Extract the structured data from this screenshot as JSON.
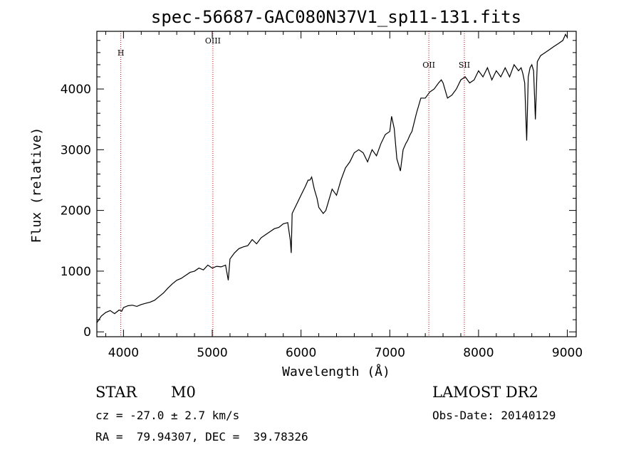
{
  "chart_data": {
    "type": "line",
    "title": "spec-56687-GAC080N37V1_sp11-131.fits",
    "xlabel": "Wavelength (Å)",
    "ylabel": "Flux (relative)",
    "xlim": [
      3700,
      9100
    ],
    "ylim": [
      -80,
      4950
    ],
    "xticks": [
      4000,
      5000,
      6000,
      7000,
      8000,
      9000
    ],
    "yticks": [
      0,
      1000,
      2000,
      3000,
      4000
    ],
    "grid": false,
    "series": [
      {
        "x": [
          3700,
          3750,
          3800,
          3850,
          3900,
          3950,
          3980,
          4000,
          4050,
          4100,
          4150,
          4200,
          4250,
          4300,
          4350,
          4400,
          4450,
          4500,
          4550,
          4600,
          4650,
          4700,
          4750,
          4800,
          4850,
          4900,
          4950,
          5000,
          5050,
          5100,
          5150,
          5180,
          5200,
          5250,
          5300,
          5350,
          5400,
          5450,
          5500,
          5550,
          5600,
          5650,
          5700,
          5750,
          5800,
          5850,
          5880,
          5890,
          5900,
          5950,
          6000,
          6050,
          6080,
          6100,
          6120,
          6150,
          6180,
          6200,
          6250,
          6280,
          6300,
          6350,
          6400,
          6450,
          6500,
          6550,
          6600,
          6650,
          6700,
          6750,
          6800,
          6850,
          6900,
          6950,
          7000,
          7020,
          7050,
          7080,
          7100,
          7120,
          7150,
          7180,
          7200,
          7230,
          7250,
          7300,
          7350,
          7400,
          7450,
          7500,
          7550,
          7580,
          7600,
          7650,
          7700,
          7750,
          7800,
          7850,
          7900,
          7950,
          8000,
          8050,
          8100,
          8150,
          8200,
          8250,
          8300,
          8350,
          8400,
          8450,
          8480,
          8500,
          8520,
          8542,
          8560,
          8580,
          8600,
          8620,
          8640,
          8662,
          8680,
          8700,
          8750,
          8800,
          8850,
          8900,
          8950,
          8980,
          9000
        ],
        "y": [
          150,
          260,
          320,
          350,
          300,
          360,
          340,
          400,
          430,
          440,
          420,
          450,
          470,
          490,
          520,
          580,
          640,
          720,
          790,
          850,
          880,
          930,
          980,
          1000,
          1050,
          1020,
          1100,
          1050,
          1080,
          1070,
          1100,
          850,
          1200,
          1300,
          1370,
          1400,
          1420,
          1520,
          1450,
          1550,
          1600,
          1650,
          1700,
          1720,
          1780,
          1800,
          1500,
          1300,
          1950,
          2100,
          2250,
          2400,
          2500,
          2500,
          2550,
          2350,
          2200,
          2050,
          1950,
          2000,
          2100,
          2350,
          2250,
          2500,
          2700,
          2800,
          2950,
          3000,
          2950,
          2800,
          3000,
          2900,
          3100,
          3250,
          3300,
          3550,
          3350,
          2850,
          2750,
          2650,
          3000,
          3100,
          3150,
          3250,
          3300,
          3600,
          3850,
          3850,
          3950,
          4000,
          4100,
          4150,
          4100,
          3850,
          3900,
          4000,
          4150,
          4200,
          4100,
          4150,
          4300,
          4200,
          4350,
          4150,
          4300,
          4200,
          4350,
          4200,
          4400,
          4300,
          4350,
          4250,
          4100,
          3150,
          4200,
          4350,
          4400,
          4300,
          3500,
          4450,
          4500,
          4550,
          4600,
          4650,
          4700,
          4750,
          4800,
          4900,
          4850
        ]
      }
    ],
    "lines": [
      {
        "label": "H",
        "x": 3970
      },
      {
        "label": "OIII",
        "x": 5007
      },
      {
        "label": "OII",
        "x": 7440
      },
      {
        "label": "SII",
        "x": 7840
      }
    ]
  },
  "info": {
    "class": "STAR",
    "subclass": "M0",
    "survey": "LAMOST DR2",
    "cz": "cz = -27.0 ± 2.7 km/s",
    "obs_date": "Obs-Date: 20140129",
    "coords": "RA =  79.94307, DEC =  39.78326"
  },
  "colors": {
    "line": "#000000",
    "marker": "#cc0000"
  }
}
